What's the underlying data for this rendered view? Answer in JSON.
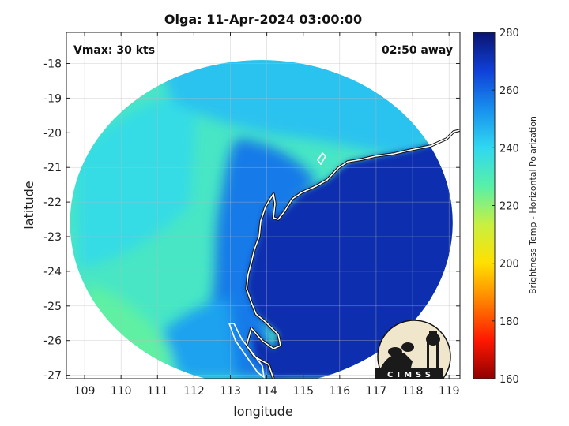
{
  "chart_data": {
    "type": "heatmap",
    "title": "Olga: 11-Apr-2024 03:00:00",
    "xlabel": "longitude",
    "ylabel": "latitude",
    "xlim": [
      108.5,
      119.3
    ],
    "ylim": [
      -27.1,
      -17.1
    ],
    "x_ticks": [
      109,
      110,
      111,
      112,
      113,
      114,
      115,
      116,
      117,
      118,
      119
    ],
    "y_ticks": [
      -18,
      -19,
      -20,
      -21,
      -22,
      -23,
      -24,
      -25,
      -26,
      -27
    ],
    "grid": true,
    "annotations": {
      "top_left": "Vmax: 30 kts",
      "top_right": "02:50 away"
    },
    "colorbar": {
      "label": "Brightness Temp - Horizontal Polarization",
      "range": [
        160,
        280
      ],
      "ticks": [
        280,
        260,
        240,
        220,
        200,
        180,
        160
      ],
      "colors": [
        "#0a1470",
        "#1040d8",
        "#1890ee",
        "#30d8f0",
        "#58f0a8",
        "#c8f040",
        "#ffe000",
        "#ff8000",
        "#ff1800",
        "#900000"
      ]
    },
    "swath": {
      "center_lon": 113.85,
      "center_lat": -22.6,
      "radius_lon": 5.25,
      "radius_lat": 4.7
    },
    "field_regions": [
      {
        "name": "background",
        "temp": 232
      },
      {
        "name": "western-band",
        "temp": 238
      },
      {
        "name": "southwest-patch",
        "temp": 226
      },
      {
        "name": "northern-band",
        "temp": 244
      },
      {
        "name": "central-deep-band",
        "temp": 257
      },
      {
        "name": "inner-band",
        "temp": 250
      },
      {
        "name": "land",
        "temp": 272
      },
      {
        "name": "southeast-warm-band",
        "temp": 236
      },
      {
        "name": "southeast-warm-core",
        "temp": 224
      }
    ]
  },
  "logo": {
    "text": "CIMSS"
  }
}
